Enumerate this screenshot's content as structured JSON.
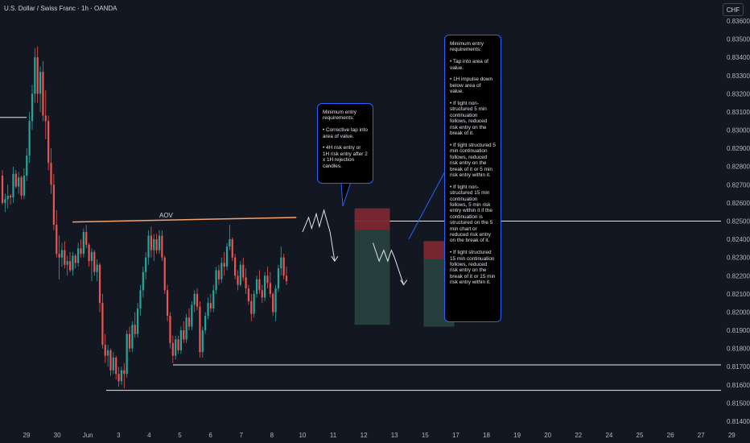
{
  "symbol_title": "U.S. Dollar / Swiss Franc · 1h · OANDA",
  "currency_badge": "CHF",
  "aov_label": "AOV",
  "note_left": "Minimum entry requirements:\n\n• Corrective tap into area of value.\n\n• 4H risk entry or 1H risk entry after 2 x 1H rejection candles.",
  "note_right": "Minimum entry requirements:\n\n• Tap into area of value.\n\n• 1H impulse down below area of value.\n\n• If tight non-structured 5 min continuation follows, reduced risk entry on the break of it.\n\n• If tight structured 5 min continuation follows, reduced risk entry on the break of it or 5 min risk entry within it.\n\n• If tight non-structured 15 min continuation follows, 5 min risk entry within it if the continuation is structured on the 5 min chart or reduced risk entry on the break of it.\n\n• If tight structured 15 min continuation follows, reduced risk entry on the break of it or 15 min risk entry within it.",
  "colors": {
    "background": "#131722",
    "up": "#26a69a",
    "down": "#ef5350",
    "level_line": "#ffffff",
    "aov_line": "#f7a26b",
    "stop_zone": "#7a2732",
    "target_zone": "#27413f",
    "note_border": "#2962ff"
  },
  "chart_data": {
    "type": "candlestick",
    "title": "U.S. Dollar / Swiss Franc · 1h · OANDA",
    "y_ticks": [
      "0.83600",
      "0.83500",
      "0.83400",
      "0.83300",
      "0.83200",
      "0.83100",
      "0.83000",
      "0.82900",
      "0.82800",
      "0.82700",
      "0.82600",
      "0.82500",
      "0.82400",
      "0.82300",
      "0.82200",
      "0.82100",
      "0.82000",
      "0.81900",
      "0.81800",
      "0.81700",
      "0.81600",
      "0.81500",
      "0.81400"
    ],
    "ylim": [
      0.814,
      0.836
    ],
    "x_ticks": [
      "29",
      "30",
      "Jun",
      "3",
      "4",
      "5",
      "6",
      "7",
      "8",
      "10",
      "11",
      "12",
      "13",
      "15",
      "17",
      "18",
      "19",
      "20",
      "22",
      "24",
      "25",
      "26",
      "27",
      "29"
    ],
    "x_tick_days": [
      0,
      1,
      2,
      3,
      4,
      5,
      6,
      7,
      8,
      9,
      10,
      11,
      12,
      13,
      14,
      15,
      16,
      17,
      18,
      19,
      20,
      21,
      22,
      23
    ],
    "grid": false,
    "horizontal_levels": [
      0.825,
      0.8171,
      0.8157,
      0.8307
    ],
    "aov_line": {
      "start": [
        1.5,
        0.82495
      ],
      "end": [
        8.8,
        0.8252
      ]
    },
    "short_setups": [
      {
        "x_start": 10.7,
        "x_end": 11.85,
        "entry": 0.8245,
        "stop": 0.8257,
        "target": 0.8193
      },
      {
        "x_start": 12.95,
        "x_end": 13.95,
        "entry": 0.8229,
        "stop": 0.8239,
        "target": 0.8192
      }
    ],
    "projected_paths": [
      [
        [
          9.0,
          0.8244
        ],
        [
          9.2,
          0.8252
        ],
        [
          9.3,
          0.8246
        ],
        [
          9.45,
          0.8254
        ],
        [
          9.55,
          0.8247
        ],
        [
          9.7,
          0.8256
        ],
        [
          9.9,
          0.8244
        ],
        [
          10.05,
          0.8228
        ]
      ],
      [
        [
          11.3,
          0.8238
        ],
        [
          11.5,
          0.8228
        ],
        [
          11.65,
          0.8234
        ],
        [
          11.78,
          0.8228
        ],
        [
          11.9,
          0.8234
        ],
        [
          12.0,
          0.823
        ],
        [
          12.3,
          0.8215
        ]
      ]
    ],
    "candles": [
      [
        0.8275,
        0.8278,
        0.8259,
        0.826
      ],
      [
        0.826,
        0.8265,
        0.8255,
        0.8262
      ],
      [
        0.8262,
        0.827,
        0.8257,
        0.8264
      ],
      [
        0.8264,
        0.8265,
        0.8259,
        0.8263
      ],
      [
        0.8263,
        0.828,
        0.826,
        0.8276
      ],
      [
        0.8276,
        0.8278,
        0.8268,
        0.8269
      ],
      [
        0.8269,
        0.8277,
        0.8265,
        0.8274
      ],
      [
        0.8274,
        0.8275,
        0.8262,
        0.8264
      ],
      [
        0.8264,
        0.8279,
        0.8262,
        0.8275
      ],
      [
        0.8275,
        0.829,
        0.8272,
        0.8286
      ],
      [
        0.8286,
        0.831,
        0.8282,
        0.8305
      ],
      [
        0.8305,
        0.8325,
        0.83,
        0.832
      ],
      [
        0.832,
        0.8345,
        0.8315,
        0.834
      ],
      [
        0.834,
        0.8346,
        0.8315,
        0.832
      ],
      [
        0.832,
        0.8335,
        0.831,
        0.8332
      ],
      [
        0.8332,
        0.8338,
        0.8305,
        0.8308
      ],
      [
        0.8308,
        0.8322,
        0.8295,
        0.8305
      ],
      [
        0.8305,
        0.8308,
        0.8278,
        0.8282
      ],
      [
        0.8282,
        0.829,
        0.8265,
        0.827
      ],
      [
        0.827,
        0.8276,
        0.8245,
        0.8248
      ],
      [
        0.8248,
        0.8256,
        0.823,
        0.8232
      ],
      [
        0.8232,
        0.8242,
        0.8218,
        0.823
      ],
      [
        0.823,
        0.8238,
        0.8225,
        0.8234
      ],
      [
        0.8234,
        0.8239,
        0.8224,
        0.8226
      ],
      [
        0.8226,
        0.8231,
        0.822,
        0.8228
      ],
      [
        0.8228,
        0.8233,
        0.8222,
        0.8223
      ],
      [
        0.8223,
        0.8233,
        0.822,
        0.8231
      ],
      [
        0.8231,
        0.8232,
        0.8224,
        0.8227
      ],
      [
        0.8227,
        0.8238,
        0.8225,
        0.8235
      ],
      [
        0.8235,
        0.824,
        0.823,
        0.8232
      ],
      [
        0.8232,
        0.8246,
        0.823,
        0.8244
      ],
      [
        0.8244,
        0.8248,
        0.8235,
        0.8237
      ],
      [
        0.8237,
        0.8238,
        0.8225,
        0.8228
      ],
      [
        0.8228,
        0.8235,
        0.8217,
        0.8233
      ],
      [
        0.8233,
        0.8234,
        0.822,
        0.8222
      ],
      [
        0.8222,
        0.8229,
        0.8217,
        0.8226
      ],
      [
        0.8226,
        0.8227,
        0.82,
        0.8205
      ],
      [
        0.8205,
        0.821,
        0.818,
        0.8182
      ],
      [
        0.8182,
        0.8188,
        0.8172,
        0.8176
      ],
      [
        0.8176,
        0.8182,
        0.817,
        0.8179
      ],
      [
        0.8179,
        0.818,
        0.8165,
        0.8168
      ],
      [
        0.8168,
        0.8178,
        0.8166,
        0.8175
      ],
      [
        0.8175,
        0.8176,
        0.8163,
        0.8166
      ],
      [
        0.8166,
        0.817,
        0.8159,
        0.8162
      ],
      [
        0.8162,
        0.817,
        0.816,
        0.8168
      ],
      [
        0.8168,
        0.8172,
        0.8158,
        0.8166
      ],
      [
        0.8166,
        0.819,
        0.8164,
        0.8188
      ],
      [
        0.8188,
        0.8192,
        0.8178,
        0.818
      ],
      [
        0.818,
        0.8195,
        0.8178,
        0.8193
      ],
      [
        0.8193,
        0.82,
        0.8186,
        0.8188
      ],
      [
        0.8188,
        0.8205,
        0.8186,
        0.8202
      ],
      [
        0.8202,
        0.8215,
        0.8198,
        0.8212
      ],
      [
        0.8212,
        0.8225,
        0.8208,
        0.8222
      ],
      [
        0.8222,
        0.8233,
        0.8218,
        0.823
      ],
      [
        0.823,
        0.8245,
        0.8226,
        0.8242
      ],
      [
        0.8242,
        0.8247,
        0.823,
        0.8234
      ],
      [
        0.8234,
        0.8243,
        0.8228,
        0.824
      ],
      [
        0.824,
        0.8243,
        0.8232,
        0.8234
      ],
      [
        0.8234,
        0.8245,
        0.8232,
        0.8242
      ],
      [
        0.8242,
        0.8245,
        0.8228,
        0.823
      ],
      [
        0.823,
        0.8231,
        0.821,
        0.8212
      ],
      [
        0.8212,
        0.8215,
        0.8195,
        0.8198
      ],
      [
        0.8198,
        0.82,
        0.818,
        0.8183
      ],
      [
        0.8183,
        0.8187,
        0.8172,
        0.8176
      ],
      [
        0.8176,
        0.8187,
        0.8174,
        0.8185
      ],
      [
        0.8185,
        0.8187,
        0.8177,
        0.8179
      ],
      [
        0.8179,
        0.8192,
        0.8177,
        0.819
      ],
      [
        0.819,
        0.8195,
        0.8183,
        0.8185
      ],
      [
        0.8185,
        0.8199,
        0.8183,
        0.8197
      ],
      [
        0.8197,
        0.8202,
        0.819,
        0.8192
      ],
      [
        0.8192,
        0.8206,
        0.819,
        0.8204
      ],
      [
        0.8204,
        0.8212,
        0.82,
        0.821
      ],
      [
        0.821,
        0.8213,
        0.8201,
        0.8203
      ],
      [
        0.8203,
        0.8206,
        0.8175,
        0.8178
      ],
      [
        0.8178,
        0.8192,
        0.8175,
        0.819
      ],
      [
        0.819,
        0.82,
        0.8188,
        0.8198
      ],
      [
        0.8198,
        0.8208,
        0.8196,
        0.8205
      ],
      [
        0.8205,
        0.821,
        0.82,
        0.8202
      ],
      [
        0.8202,
        0.8215,
        0.82,
        0.8212
      ],
      [
        0.8212,
        0.8225,
        0.821,
        0.8223
      ],
      [
        0.8223,
        0.8226,
        0.8215,
        0.8218
      ],
      [
        0.8218,
        0.823,
        0.8216,
        0.8227
      ],
      [
        0.8227,
        0.8233,
        0.822,
        0.8225
      ],
      [
        0.8225,
        0.8238,
        0.8223,
        0.8236
      ],
      [
        0.8236,
        0.8248,
        0.8234,
        0.824
      ],
      [
        0.824,
        0.8241,
        0.8228,
        0.823
      ],
      [
        0.823,
        0.8232,
        0.8218,
        0.822
      ],
      [
        0.822,
        0.8223,
        0.8212,
        0.8215
      ],
      [
        0.8215,
        0.8228,
        0.8214,
        0.8226
      ],
      [
        0.8226,
        0.823,
        0.8217,
        0.8219
      ],
      [
        0.8219,
        0.8224,
        0.821,
        0.8213
      ],
      [
        0.8213,
        0.8215,
        0.8204,
        0.8206
      ],
      [
        0.8206,
        0.821,
        0.8195,
        0.8199
      ],
      [
        0.8199,
        0.8212,
        0.8197,
        0.821
      ],
      [
        0.821,
        0.822,
        0.8208,
        0.8218
      ],
      [
        0.8218,
        0.8223,
        0.821,
        0.8212
      ],
      [
        0.8212,
        0.8215,
        0.8205,
        0.8208
      ],
      [
        0.8208,
        0.8222,
        0.8206,
        0.822
      ],
      [
        0.822,
        0.8225,
        0.8213,
        0.8216
      ],
      [
        0.8216,
        0.8222,
        0.8208,
        0.821
      ],
      [
        0.821,
        0.8211,
        0.8198,
        0.82
      ],
      [
        0.82,
        0.8215,
        0.8195,
        0.8213
      ],
      [
        0.8213,
        0.8226,
        0.8211,
        0.8224
      ],
      [
        0.8224,
        0.8236,
        0.822,
        0.823
      ],
      [
        0.823,
        0.8232,
        0.8218,
        0.822
      ],
      [
        0.822,
        0.8225,
        0.8215,
        0.8217
      ]
    ]
  }
}
